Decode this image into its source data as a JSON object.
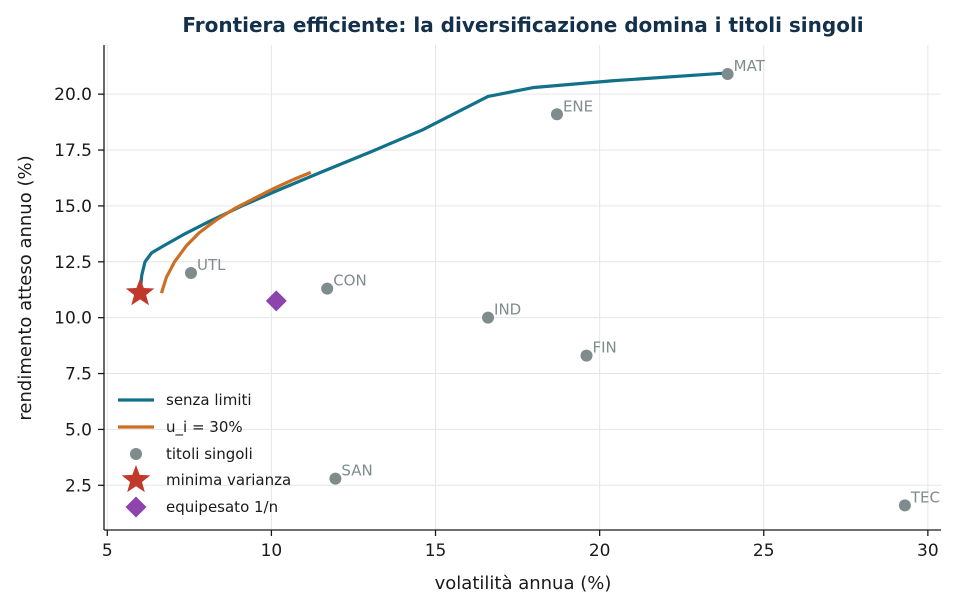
{
  "chart_data": {
    "type": "scatter",
    "title": "Frontiera efficiente: la diversificazione domina i titoli singoli",
    "xlabel": "volatilità annua (%)",
    "ylabel": "rendimento atteso annuo (%)",
    "xlim": [
      4.9,
      30.4
    ],
    "ylim": [
      0.5,
      22.2
    ],
    "xticks": [
      5,
      10,
      15,
      20,
      25,
      30
    ],
    "xtick_labels": [
      "5",
      "10",
      "15",
      "20",
      "25",
      "30"
    ],
    "yticks": [
      2.5,
      5.0,
      7.5,
      10.0,
      12.5,
      15.0,
      17.5,
      20.0
    ],
    "ytick_labels": [
      "2.5",
      "5.0",
      "7.5",
      "10.0",
      "12.5",
      "15.0",
      "17.5",
      "20.0"
    ],
    "grid": true,
    "legend_position": "lower-left",
    "series": [
      {
        "name": "senza limiti",
        "kind": "line",
        "color": "#12718a",
        "x": [
          6.0,
          6.05,
          6.15,
          6.35,
          6.7,
          7.3,
          8.1,
          9.1,
          10.2,
          11.5,
          13.0,
          14.6,
          16.6,
          18.0,
          20.4,
          23.9
        ],
        "y": [
          11.1,
          11.9,
          12.5,
          12.9,
          13.2,
          13.7,
          14.3,
          15.0,
          15.7,
          16.5,
          17.4,
          18.4,
          19.9,
          20.3,
          20.6,
          20.95
        ]
      },
      {
        "name": "u_i = 30%",
        "kind": "line",
        "color": "#cc6f22",
        "x": [
          6.65,
          6.8,
          7.05,
          7.4,
          7.8,
          8.3,
          8.9,
          9.5,
          10.1,
          10.7,
          11.2
        ],
        "y": [
          11.1,
          11.8,
          12.5,
          13.2,
          13.8,
          14.35,
          14.9,
          15.35,
          15.8,
          16.2,
          16.5
        ]
      },
      {
        "name": "titoli singoli",
        "kind": "points",
        "color": "#7f8c8d",
        "points": [
          {
            "label": "MAT",
            "x": 23.9,
            "y": 20.9
          },
          {
            "label": "ENE",
            "x": 18.7,
            "y": 19.1
          },
          {
            "label": "UTL",
            "x": 7.55,
            "y": 12.0
          },
          {
            "label": "CON",
            "x": 11.7,
            "y": 11.3
          },
          {
            "label": "IND",
            "x": 16.6,
            "y": 10.0
          },
          {
            "label": "FIN",
            "x": 19.6,
            "y": 8.3
          },
          {
            "label": "SAN",
            "x": 11.95,
            "y": 2.8
          },
          {
            "label": "TEC",
            "x": 29.3,
            "y": 1.6
          }
        ]
      },
      {
        "name": "minima varianza",
        "kind": "star",
        "color": "#c0392b",
        "x": 6.0,
        "y": 11.1
      },
      {
        "name": "equipesato 1/n",
        "kind": "diamond",
        "color": "#8e44ad",
        "x": 10.15,
        "y": 10.75
      }
    ]
  }
}
